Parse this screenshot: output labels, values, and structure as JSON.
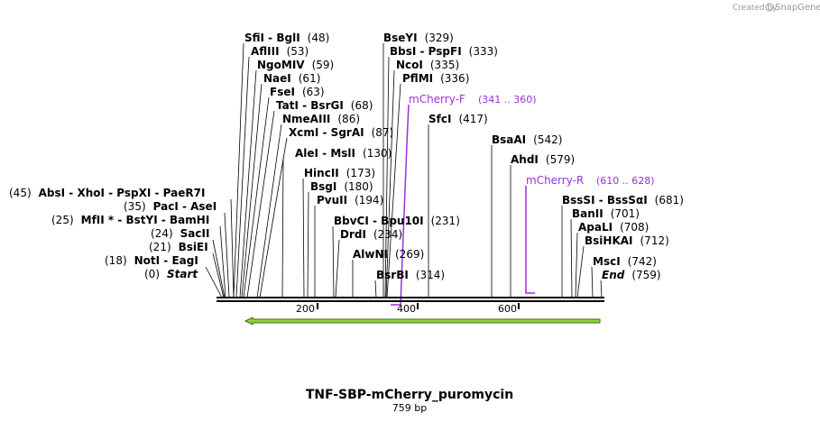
{
  "title": "TNF-SBP-mCherry_puromycin",
  "length_label": "759 bp",
  "credit": "Created by",
  "brand": "SnapGene",
  "colors": {
    "line": "#000000",
    "primer": "#9b30d9",
    "feature_fill": "#8fd13f",
    "feature_stroke": "#3a6e0a",
    "credit": "#999999"
  },
  "scale": {
    "ticks": [
      {
        "label": "200"
      },
      {
        "label": "400"
      },
      {
        "label": "600"
      }
    ]
  },
  "enzymes_left": [
    {
      "num": "(45)",
      "names": [
        "AbsI",
        "XhoI",
        "PspXI",
        "PaeR7I"
      ],
      "text": "AbsI  - XhoI  - PspXI  - PaeR7I"
    },
    {
      "num": "(35)",
      "names": [
        "PacI",
        "AseI"
      ],
      "text": "PacI  - AseI"
    },
    {
      "num": "(25)",
      "text": "MfII * - BstYI  - BamHI"
    },
    {
      "num": "(24)",
      "text": "SacII"
    },
    {
      "num": "(21)",
      "text": "BsiEI"
    },
    {
      "num": "(18)",
      "text": "NotI  - EagI"
    },
    {
      "num": "(0)",
      "text": "Start"
    }
  ],
  "enzymes_top": [
    {
      "text": "SfiI  - BglI",
      "num": "(48)"
    },
    {
      "text": "AflIII",
      "num": "(53)"
    },
    {
      "text": "NgoMIV",
      "num": "(59)"
    },
    {
      "text": "NaeI",
      "num": "(61)"
    },
    {
      "text": "FseI",
      "num": "(63)"
    },
    {
      "text": "TatI  - BsrGI",
      "num": "(68)"
    },
    {
      "text": "NmeAIII",
      "num": "(86)"
    },
    {
      "text": "XcmI  - SgrAI",
      "num": "(87)"
    },
    {
      "text": "AleI  - MslI",
      "num": "(130)"
    },
    {
      "text": "HincII",
      "num": "(173)"
    },
    {
      "text": "BsgI",
      "num": "(180)"
    },
    {
      "text": "PvuII",
      "num": "(194)"
    },
    {
      "text": "BbvCI  - Bpu10I",
      "num": "(231)"
    },
    {
      "text": "DrdI",
      "num": "(234)"
    },
    {
      "text": "AlwNI",
      "num": "(269)"
    },
    {
      "text": "BsrBI",
      "num": "(314)"
    },
    {
      "text": "BseYI",
      "num": "(329)"
    },
    {
      "text": "BbsI  - PspFI",
      "num": "(333)"
    },
    {
      "text": "NcoI",
      "num": "(335)"
    },
    {
      "text": "PflMI",
      "num": "(336)"
    },
    {
      "text": "SfcI",
      "num": "(417)"
    },
    {
      "text": "BsaAI",
      "num": "(542)"
    },
    {
      "text": "AhdI",
      "num": "(579)"
    },
    {
      "text": "BssSI  - BssSαI",
      "num": "(681)"
    },
    {
      "text": "BanII",
      "num": "(701)"
    },
    {
      "text": "ApaLI",
      "num": "(708)"
    },
    {
      "text": "BsiHKAI",
      "num": "(712)"
    },
    {
      "text": "MscI",
      "num": "(742)"
    },
    {
      "text": "End",
      "num": "(759)"
    }
  ],
  "primers": [
    {
      "name": "mCherry-F",
      "range": "(341 .. 360)"
    },
    {
      "name": "mCherry-R",
      "range": "(610 .. 628)"
    }
  ]
}
